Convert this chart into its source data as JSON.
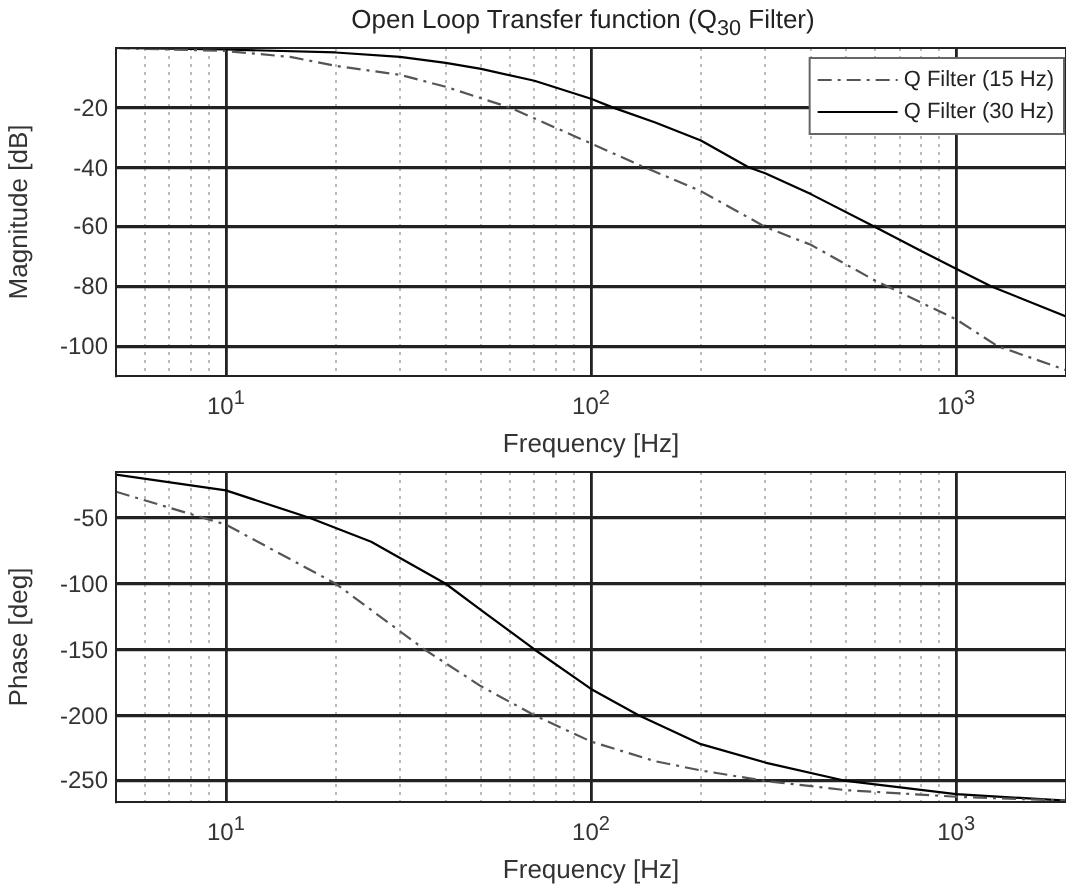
{
  "chart_data": [
    {
      "type": "line",
      "title": "Open Loop Transfer function (Q$_{30}$ Filter)",
      "xlabel": "Frequency [Hz]",
      "ylabel": "Magnitude [dB]",
      "log": "x",
      "grid": true,
      "legend": "top right",
      "xlim": [
        5,
        2000
      ],
      "xticks": [
        {
          "value": 5,
          "label": null
        },
        {
          "value": 6,
          "label": null
        },
        {
          "value": 7,
          "label": null
        },
        {
          "value": 8,
          "label": null
        },
        {
          "value": 9,
          "label": null
        },
        {
          "value": 10,
          "label": "10$^{1}$"
        },
        {
          "value": 20,
          "label": null
        },
        {
          "value": 30,
          "label": null
        },
        {
          "value": 40,
          "label": null
        },
        {
          "value": 50,
          "label": null
        },
        {
          "value": 60,
          "label": null
        },
        {
          "value": 70,
          "label": null
        },
        {
          "value": 80,
          "label": null
        },
        {
          "value": 90,
          "label": null
        },
        {
          "value": 100,
          "label": "10$^{2}$"
        },
        {
          "value": 200,
          "label": null
        },
        {
          "value": 300,
          "label": null
        },
        {
          "value": 400,
          "label": null
        },
        {
          "value": 500,
          "label": null
        },
        {
          "value": 600,
          "label": null
        },
        {
          "value": 700,
          "label": null
        },
        {
          "value": 800,
          "label": null
        },
        {
          "value": 900,
          "label": null
        },
        {
          "value": 1000,
          "label": "10$^{3}$"
        },
        {
          "value": 2000,
          "label": null
        }
      ],
      "ylim": [
        -110,
        0
      ],
      "yticks": [
        -100,
        -80,
        -60,
        -40,
        -20
      ],
      "series": [
        {
          "name": "Q Filter (15 Hz)",
          "color": "#555555",
          "line_style": "dashed",
          "x": [
            5,
            10,
            15,
            20,
            30,
            40,
            60,
            100,
            140,
            200,
            300,
            400,
            600,
            1000,
            1300,
            2000
          ],
          "values": [
            0,
            -1,
            -3,
            -6,
            -9,
            -13,
            -20,
            -32,
            -40,
            -48,
            -60,
            -66,
            -78,
            -91,
            -100,
            -108
          ]
        },
        {
          "name": "Q Filter (30 Hz)",
          "color": "#000000",
          "line_style": "solid",
          "x": [
            5,
            10,
            20,
            30,
            40,
            50,
            70,
            100,
            115,
            150,
            200,
            270,
            300,
            400,
            600,
            800,
            1000,
            1250,
            2000
          ],
          "values": [
            0,
            -0.5,
            -1.5,
            -3,
            -5,
            -7,
            -11,
            -17,
            -20,
            -25,
            -31,
            -40,
            -42,
            -49,
            -60,
            -68,
            -74,
            -80,
            -90
          ]
        }
      ]
    },
    {
      "type": "line",
      "xlabel": "Frequency [Hz]",
      "ylabel": "Phase [deg]",
      "log": "x",
      "grid": true,
      "xlim": [
        5,
        2000
      ],
      "xticks": [
        {
          "value": 5,
          "label": null
        },
        {
          "value": 6,
          "label": null
        },
        {
          "value": 7,
          "label": null
        },
        {
          "value": 8,
          "label": null
        },
        {
          "value": 9,
          "label": null
        },
        {
          "value": 10,
          "label": "10$^{1}$"
        },
        {
          "value": 20,
          "label": null
        },
        {
          "value": 30,
          "label": null
        },
        {
          "value": 40,
          "label": null
        },
        {
          "value": 50,
          "label": null
        },
        {
          "value": 60,
          "label": null
        },
        {
          "value": 70,
          "label": null
        },
        {
          "value": 80,
          "label": null
        },
        {
          "value": 90,
          "label": null
        },
        {
          "value": 100,
          "label": "10$^{2}$"
        },
        {
          "value": 200,
          "label": null
        },
        {
          "value": 300,
          "label": null
        },
        {
          "value": 400,
          "label": null
        },
        {
          "value": 500,
          "label": null
        },
        {
          "value": 600,
          "label": null
        },
        {
          "value": 700,
          "label": null
        },
        {
          "value": 800,
          "label": null
        },
        {
          "value": 900,
          "label": null
        },
        {
          "value": 1000,
          "label": "10$^{3}$"
        },
        {
          "value": 2000,
          "label": null
        }
      ],
      "ylim": [
        -266,
        -15
      ],
      "yticks": [
        -250,
        -200,
        -150,
        -100,
        -50
      ],
      "series": [
        {
          "color": "#555555",
          "line_style": "dashed",
          "x": [
            5,
            10,
            20,
            35,
            50,
            70,
            100,
            150,
            200,
            300,
            500,
            1000,
            2000
          ],
          "values": [
            -30,
            -55,
            -100,
            -150,
            -178,
            -200,
            -220,
            -235,
            -242,
            -250,
            -257,
            -262,
            -265
          ]
        },
        {
          "color": "#000000",
          "line_style": "solid",
          "x": [
            5,
            10,
            17,
            25,
            40,
            50,
            70,
            100,
            135,
            200,
            300,
            500,
            1000,
            2000
          ],
          "values": [
            -17,
            -29,
            -50,
            -68,
            -100,
            -120,
            -150,
            -180,
            -200,
            -222,
            -236,
            -250,
            -260,
            -265
          ]
        }
      ]
    }
  ]
}
